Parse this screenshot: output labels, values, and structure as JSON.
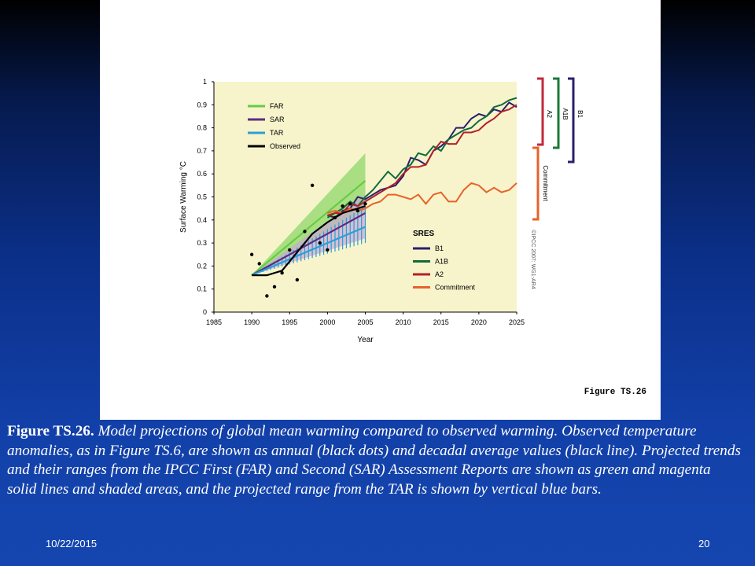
{
  "slide": {
    "figure_label": "Figure TS.26",
    "caption_label": "Figure TS.26.",
    "caption_text": "Model projections of global mean warming compared to observed warming. Observed temperature anomalies, as in Figure TS.6, are shown as annual (black dots) and decadal average values (black line). Projected trends and their ranges from the IPCC First (FAR) and Second (SAR) Assessment Reports are shown as green and magenta solid lines and shaded areas, and the projected range from the TAR is shown by vertical blue bars.",
    "footer_date": "10/22/2015",
    "page_number": "20"
  },
  "chart_data": {
    "type": "line",
    "xlabel": "Year",
    "ylabel": "Surface Warming °C",
    "xlim": [
      1985,
      2025
    ],
    "ylim": [
      0,
      1
    ],
    "xticks": [
      1985,
      1990,
      1995,
      2000,
      2005,
      2010,
      2015,
      2020,
      2025
    ],
    "yticks": [
      0,
      0.1,
      0.2,
      0.3,
      0.4,
      0.5,
      0.6,
      0.7,
      0.8,
      0.9,
      1
    ],
    "copyright": "©IPCC 2007: WG1-AR4",
    "legend_top": {
      "placement": "top-left",
      "entries": [
        {
          "name": "FAR",
          "color": "#66cc44"
        },
        {
          "name": "SAR",
          "color": "#5a2d82"
        },
        {
          "name": "TAR",
          "color": "#2a9fd6"
        },
        {
          "name": "Observed",
          "color": "#000000"
        }
      ]
    },
    "legend_sres": {
      "title": "SRES",
      "placement": "bottom-right",
      "entries": [
        {
          "name": "B1",
          "color": "#2b1f6b"
        },
        {
          "name": "A1B",
          "color": "#0f6b3a"
        },
        {
          "name": "A2",
          "color": "#b3202a"
        },
        {
          "name": "Commitment",
          "color": "#e8622a"
        }
      ]
    },
    "brackets": [
      {
        "label": "A2",
        "color": "#c0283a"
      },
      {
        "label": "A1B",
        "color": "#1a7a3a"
      },
      {
        "label": "B1",
        "color": "#2b1f6b"
      },
      {
        "label": "Commitment",
        "color": "#e8622a"
      }
    ],
    "projection_ranges": {
      "FAR": {
        "color": "#66cc44",
        "x": [
          1990,
          2005
        ],
        "central": [
          0.16,
          0.57
        ],
        "low": [
          0.16,
          0.44
        ],
        "high": [
          0.16,
          0.69
        ]
      },
      "SAR": {
        "color": "#5a2d82",
        "x": [
          1990,
          2005
        ],
        "central": [
          0.16,
          0.43
        ],
        "low": [
          0.16,
          0.32
        ],
        "high": [
          0.16,
          0.51
        ]
      },
      "TAR": {
        "color": "#2a9fd6",
        "x": [
          1990,
          2005
        ],
        "central": [
          0.16,
          0.37
        ],
        "low": [
          0.16,
          0.3
        ],
        "high": [
          0.16,
          0.46
        ]
      }
    },
    "observed_annual": {
      "x": [
        1990,
        1991,
        1992,
        1993,
        1994,
        1995,
        1996,
        1997,
        1998,
        1999,
        2000,
        2001,
        2002,
        2003,
        2004,
        2005
      ],
      "y": [
        0.25,
        0.21,
        0.07,
        0.11,
        0.17,
        0.27,
        0.14,
        0.35,
        0.55,
        0.3,
        0.27,
        0.41,
        0.46,
        0.47,
        0.44,
        0.47
      ]
    },
    "observed_decadal": {
      "x": [
        1990,
        1992,
        1994,
        1996,
        1998,
        2000,
        2002,
        2004,
        2005
      ],
      "y": [
        0.16,
        0.16,
        0.18,
        0.26,
        0.34,
        0.39,
        0.43,
        0.45,
        0.46
      ]
    },
    "series": [
      {
        "name": "B1",
        "color": "#2b1f6b",
        "x": [
          2000,
          2001,
          2002,
          2003,
          2004,
          2005,
          2006,
          2007,
          2008,
          2009,
          2010,
          2011,
          2012,
          2013,
          2014,
          2015,
          2016,
          2017,
          2018,
          2019,
          2020,
          2021,
          2022,
          2023,
          2024,
          2025
        ],
        "y": [
          0.42,
          0.41,
          0.44,
          0.45,
          0.5,
          0.49,
          0.51,
          0.53,
          0.54,
          0.55,
          0.59,
          0.67,
          0.66,
          0.64,
          0.7,
          0.72,
          0.75,
          0.8,
          0.8,
          0.84,
          0.86,
          0.85,
          0.88,
          0.87,
          0.91,
          0.89
        ]
      },
      {
        "name": "A1B",
        "color": "#0f6b3a",
        "x": [
          2000,
          2001,
          2002,
          2003,
          2004,
          2005,
          2006,
          2007,
          2008,
          2009,
          2010,
          2011,
          2012,
          2013,
          2014,
          2015,
          2016,
          2017,
          2018,
          2019,
          2020,
          2021,
          2022,
          2023,
          2024,
          2025
        ],
        "y": [
          0.41,
          0.43,
          0.45,
          0.48,
          0.46,
          0.5,
          0.53,
          0.57,
          0.61,
          0.58,
          0.62,
          0.64,
          0.69,
          0.68,
          0.72,
          0.7,
          0.75,
          0.77,
          0.79,
          0.8,
          0.83,
          0.85,
          0.89,
          0.9,
          0.92,
          0.93
        ]
      },
      {
        "name": "A2",
        "color": "#b3202a",
        "x": [
          2000,
          2001,
          2002,
          2003,
          2004,
          2005,
          2006,
          2007,
          2008,
          2009,
          2010,
          2011,
          2012,
          2013,
          2014,
          2015,
          2016,
          2017,
          2018,
          2019,
          2020,
          2021,
          2022,
          2023,
          2024,
          2025
        ],
        "y": [
          0.42,
          0.43,
          0.43,
          0.47,
          0.46,
          0.48,
          0.5,
          0.52,
          0.54,
          0.56,
          0.6,
          0.63,
          0.63,
          0.64,
          0.7,
          0.74,
          0.73,
          0.73,
          0.78,
          0.78,
          0.79,
          0.82,
          0.84,
          0.87,
          0.88,
          0.9
        ]
      },
      {
        "name": "Commitment",
        "color": "#e8622a",
        "x": [
          2000,
          2001,
          2002,
          2003,
          2004,
          2005,
          2006,
          2007,
          2008,
          2009,
          2010,
          2011,
          2012,
          2013,
          2014,
          2015,
          2016,
          2017,
          2018,
          2019,
          2020,
          2021,
          2022,
          2023,
          2024,
          2025
        ],
        "y": [
          0.43,
          0.44,
          0.43,
          0.45,
          0.44,
          0.45,
          0.47,
          0.48,
          0.51,
          0.51,
          0.5,
          0.49,
          0.51,
          0.47,
          0.51,
          0.52,
          0.48,
          0.48,
          0.53,
          0.56,
          0.55,
          0.52,
          0.54,
          0.52,
          0.53,
          0.56
        ]
      }
    ]
  }
}
